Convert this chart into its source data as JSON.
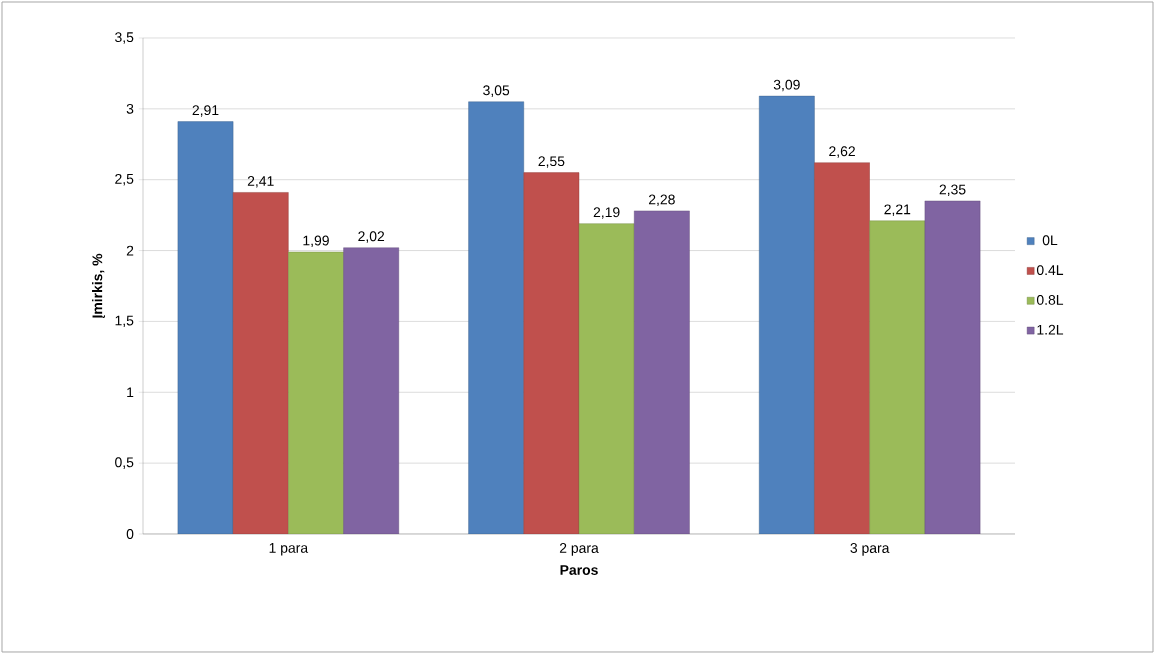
{
  "chart_data": {
    "type": "bar",
    "xlabel": "Paros",
    "ylabel": "Įmirkis, %",
    "categories": [
      "1 para",
      "2 para",
      "3 para"
    ],
    "series": [
      {
        "name": "0L",
        "color": "#4f81bd",
        "values": [
          2.91,
          3.05,
          3.09
        ],
        "value_labels": [
          "2,91",
          "3,05",
          "3,09"
        ]
      },
      {
        "name": "0.4L",
        "color": "#c0504d",
        "values": [
          2.41,
          2.55,
          2.62
        ],
        "value_labels": [
          "2,41",
          "2,55",
          "2,62"
        ]
      },
      {
        "name": "0.8L",
        "color": "#9bbb59",
        "values": [
          1.99,
          2.19,
          2.21
        ],
        "value_labels": [
          "1,99",
          "2,19",
          "2,21"
        ]
      },
      {
        "name": "1.2L",
        "color": "#8064a2",
        "values": [
          2.02,
          2.28,
          2.35
        ],
        "value_labels": [
          "2,02",
          "2,28",
          "2,35"
        ]
      }
    ],
    "ylim": [
      0,
      3.5
    ],
    "yticks": [
      0,
      {
        "value": 0.5,
        "label": "0,5"
      },
      1,
      {
        "value": 1.5,
        "label": "1,5"
      },
      2,
      {
        "value": 2.5,
        "label": "2,5"
      },
      3,
      {
        "value": 3.5,
        "label": "3,5"
      }
    ],
    "grid": "y",
    "legend": "right"
  }
}
